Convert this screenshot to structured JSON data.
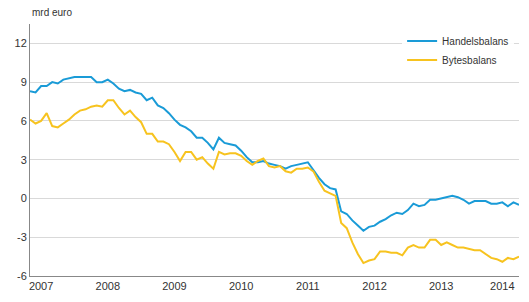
{
  "chart_data": {
    "type": "line",
    "ylabel": "mrd euro",
    "categories": [
      null,
      null,
      "2007",
      null,
      null,
      null,
      null,
      null,
      null,
      null,
      null,
      null,
      null,
      null,
      "2008",
      null,
      null,
      null,
      null,
      null,
      null,
      null,
      null,
      null,
      null,
      null,
      "2009",
      null,
      null,
      null,
      null,
      null,
      null,
      null,
      null,
      null,
      null,
      null,
      "2010",
      null,
      null,
      null,
      null,
      null,
      null,
      null,
      null,
      null,
      null,
      null,
      "2011",
      null,
      null,
      null,
      null,
      null,
      null,
      null,
      null,
      null,
      null,
      null,
      "2012",
      null,
      null,
      null,
      null,
      null,
      null,
      null,
      null,
      null,
      null,
      null,
      "2013",
      null,
      null,
      null,
      null,
      null,
      null,
      null,
      null,
      null,
      null,
      "2014",
      null,
      null,
      null
    ],
    "series": [
      {
        "name": "Handelsbalans",
        "color": "#1a9bd7",
        "values": [
          8.3,
          8.2,
          8.7,
          8.7,
          9.0,
          8.9,
          9.2,
          9.3,
          9.4,
          9.4,
          9.4,
          9.4,
          9.0,
          9.0,
          9.2,
          8.9,
          8.5,
          8.3,
          8.4,
          8.2,
          8.1,
          7.6,
          7.8,
          7.2,
          7.0,
          6.6,
          6.1,
          5.7,
          5.5,
          5.2,
          4.7,
          4.7,
          4.3,
          3.8,
          4.7,
          4.3,
          4.2,
          4.1,
          3.7,
          3.2,
          2.8,
          2.8,
          2.9,
          2.7,
          2.6,
          2.5,
          2.3,
          2.5,
          2.6,
          2.7,
          2.8,
          2.2,
          1.6,
          1.1,
          0.8,
          0.7,
          -1.0,
          -1.2,
          -1.7,
          -2.1,
          -2.5,
          -2.2,
          -2.1,
          -1.8,
          -1.6,
          -1.3,
          -1.1,
          -1.2,
          -0.9,
          -0.4,
          -0.6,
          -0.5,
          -0.1,
          -0.1,
          0.0,
          0.1,
          0.2,
          0.1,
          -0.1,
          -0.4,
          -0.2,
          -0.2,
          -0.2,
          -0.4,
          -0.4,
          -0.3,
          -0.6,
          -0.3,
          -0.5
        ]
      },
      {
        "name": "Bytesbalans",
        "color": "#f7c31f",
        "values": [
          6.1,
          5.8,
          6.0,
          6.6,
          5.6,
          5.5,
          5.8,
          6.1,
          6.5,
          6.8,
          6.9,
          7.1,
          7.2,
          7.1,
          7.6,
          7.6,
          7.0,
          6.5,
          6.8,
          6.3,
          5.9,
          5.0,
          5.0,
          4.4,
          4.4,
          4.2,
          3.6,
          2.9,
          3.6,
          3.6,
          3.0,
          3.2,
          2.7,
          2.3,
          3.6,
          3.4,
          3.5,
          3.5,
          3.3,
          2.9,
          2.6,
          2.9,
          3.1,
          2.5,
          2.4,
          2.5,
          2.1,
          2.0,
          2.3,
          2.3,
          2.4,
          2.1,
          1.3,
          0.6,
          0.4,
          0.2,
          -1.9,
          -2.3,
          -3.4,
          -4.3,
          -5.0,
          -4.8,
          -4.7,
          -4.1,
          -4.1,
          -4.2,
          -4.2,
          -4.4,
          -3.8,
          -3.6,
          -3.8,
          -3.8,
          -3.2,
          -3.2,
          -3.6,
          -3.4,
          -3.6,
          -3.8,
          -3.8,
          -3.9,
          -4.0,
          -4.0,
          -4.3,
          -4.6,
          -4.7,
          -4.9,
          -4.6,
          -4.7,
          -4.5
        ]
      }
    ],
    "ylim": [
      -6,
      13.5
    ],
    "yticks": [
      -6,
      -3,
      0,
      3,
      6,
      9,
      12
    ],
    "grid": true,
    "legend": "upper right"
  }
}
